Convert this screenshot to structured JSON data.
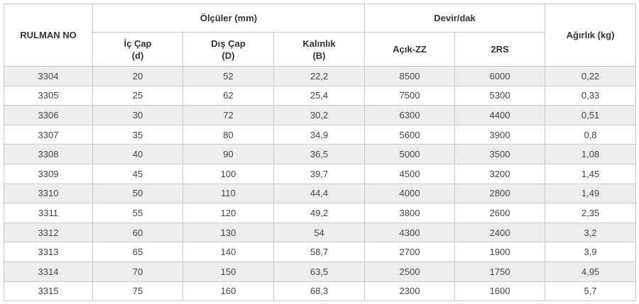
{
  "table": {
    "header": {
      "rulman_no": "RULMAN NO",
      "olculer": "Ölçüler (mm)",
      "ic_cap": [
        "İç Çap",
        "(d)"
      ],
      "dis_cap": [
        "Dış Çap",
        "(D)"
      ],
      "kalinlik": [
        "Kalınlık",
        "(B)"
      ],
      "devir": "Devir/dak",
      "acik_zz": "Açık-ZZ",
      "rs2": "2RS",
      "agirlik": "Ağırlık (kg)"
    },
    "rows": [
      [
        "3304",
        "20",
        "52",
        "22,2",
        "8500",
        "6000",
        "0,22"
      ],
      [
        "3305",
        "25",
        "62",
        "25,4",
        "7500",
        "5300",
        "0,33"
      ],
      [
        "3306",
        "30",
        "72",
        "30,2",
        "6300",
        "4400",
        "0,51"
      ],
      [
        "3307",
        "35",
        "80",
        "34,9",
        "5600",
        "3900",
        "0,8"
      ],
      [
        "3308",
        "40",
        "90",
        "36,5",
        "5000",
        "3500",
        "1,08"
      ],
      [
        "3309",
        "45",
        "100",
        "39,7",
        "4500",
        "3200",
        "1,45"
      ],
      [
        "3310",
        "50",
        "110",
        "44,4",
        "4000",
        "2800",
        "1,49"
      ],
      [
        "3311",
        "55",
        "120",
        "49,2",
        "3800",
        "2600",
        "2,35"
      ],
      [
        "3312",
        "60",
        "130",
        "54",
        "4300",
        "2400",
        "3,2"
      ],
      [
        "3313",
        "65",
        "140",
        "58,7",
        "2700",
        "1900",
        "3,9"
      ],
      [
        "3314",
        "70",
        "150",
        "63,5",
        "2500",
        "1750",
        "4,95"
      ],
      [
        "3315",
        "75",
        "160",
        "68,3",
        "2300",
        "1600",
        "5,7"
      ]
    ]
  }
}
